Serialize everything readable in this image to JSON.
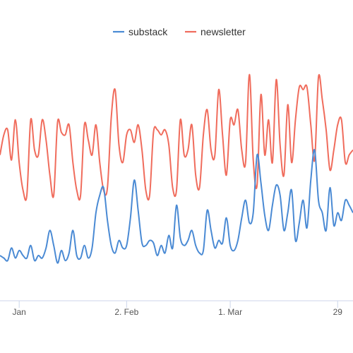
{
  "chart_data": {
    "type": "line",
    "x_unit": "date",
    "x_ticks": [
      {
        "label": "Jan",
        "date": "2021-01-05"
      },
      {
        "label": "2. Feb",
        "date": "2021-02-02"
      },
      {
        "label": "1. Mar",
        "date": "2021-03-01"
      },
      {
        "label": "29",
        "date": "2021-03-29"
      }
    ],
    "dates": [
      "2020-12-31",
      "2021-01-01",
      "2021-01-02",
      "2021-01-03",
      "2021-01-04",
      "2021-01-05",
      "2021-01-06",
      "2021-01-07",
      "2021-01-08",
      "2021-01-09",
      "2021-01-10",
      "2021-01-11",
      "2021-01-12",
      "2021-01-13",
      "2021-01-14",
      "2021-01-15",
      "2021-01-16",
      "2021-01-17",
      "2021-01-18",
      "2021-01-19",
      "2021-01-20",
      "2021-01-21",
      "2021-01-22",
      "2021-01-23",
      "2021-01-24",
      "2021-01-25",
      "2021-01-26",
      "2021-01-27",
      "2021-01-28",
      "2021-01-29",
      "2021-01-30",
      "2021-01-31",
      "2021-02-01",
      "2021-02-02",
      "2021-02-03",
      "2021-02-04",
      "2021-02-05",
      "2021-02-06",
      "2021-02-07",
      "2021-02-08",
      "2021-02-09",
      "2021-02-10",
      "2021-02-11",
      "2021-02-12",
      "2021-02-13",
      "2021-02-14",
      "2021-02-15",
      "2021-02-16",
      "2021-02-17",
      "2021-02-18",
      "2021-02-19",
      "2021-02-20",
      "2021-02-21",
      "2021-02-22",
      "2021-02-23",
      "2021-02-24",
      "2021-02-25",
      "2021-02-26",
      "2021-02-27",
      "2021-02-28",
      "2021-03-01",
      "2021-03-02",
      "2021-03-03",
      "2021-03-04",
      "2021-03-05",
      "2021-03-06",
      "2021-03-07",
      "2021-03-08",
      "2021-03-09",
      "2021-03-10",
      "2021-03-11",
      "2021-03-12",
      "2021-03-13",
      "2021-03-14",
      "2021-03-15",
      "2021-03-16",
      "2021-03-17",
      "2021-03-18",
      "2021-03-19",
      "2021-03-20",
      "2021-03-21",
      "2021-03-22",
      "2021-03-23",
      "2021-03-24",
      "2021-03-25",
      "2021-03-26",
      "2021-03-27",
      "2021-03-28",
      "2021-03-29",
      "2021-03-30",
      "2021-03-31",
      "2021-04-01",
      "2021-04-02"
    ],
    "ylim": [
      0,
      100
    ],
    "grid": false,
    "legend_position": "top-center",
    "series": [
      {
        "name": "substack",
        "color": "#4a8ad4",
        "values": [
          18,
          17,
          16,
          21,
          17,
          20,
          18,
          17,
          22,
          16,
          18,
          17,
          21,
          28,
          22,
          15,
          20,
          16,
          19,
          28,
          18,
          17,
          22,
          17,
          21,
          35,
          42,
          45,
          32,
          22,
          19,
          24,
          21,
          22,
          33,
          48,
          36,
          23,
          22,
          24,
          23,
          18,
          22,
          19,
          26,
          21,
          38,
          25,
          22,
          24,
          28,
          22,
          19,
          20,
          36,
          28,
          21,
          24,
          23,
          33,
          22,
          20,
          24,
          33,
          40,
          31,
          35,
          58,
          47,
          34,
          28,
          38,
          46,
          42,
          28,
          35,
          44,
          24,
          31,
          40,
          29,
          48,
          60,
          40,
          35,
          28,
          45,
          30,
          35,
          32,
          40,
          38,
          35
        ]
      },
      {
        "name": "newsletter",
        "color": "#f06c5c",
        "values": [
          58,
          66,
          68,
          56,
          72,
          55,
          44,
          42,
          72,
          60,
          58,
          72,
          64,
          50,
          42,
          71,
          67,
          66,
          70,
          55,
          44,
          42,
          70,
          64,
          58,
          70,
          55,
          44,
          45,
          73,
          84,
          62,
          55,
          66,
          68,
          63,
          70,
          60,
          44,
          42,
          67,
          68,
          66,
          68,
          62,
          45,
          44,
          72,
          58,
          60,
          70,
          50,
          45,
          66,
          76,
          60,
          58,
          84,
          66,
          50,
          72,
          70,
          76,
          60,
          55,
          90,
          56,
          46,
          82,
          58,
          72,
          55,
          88,
          62,
          50,
          78,
          55,
          72,
          85,
          84,
          85,
          70,
          56,
          89,
          80,
          68,
          52,
          60,
          70,
          72,
          55,
          58,
          60
        ]
      }
    ]
  }
}
